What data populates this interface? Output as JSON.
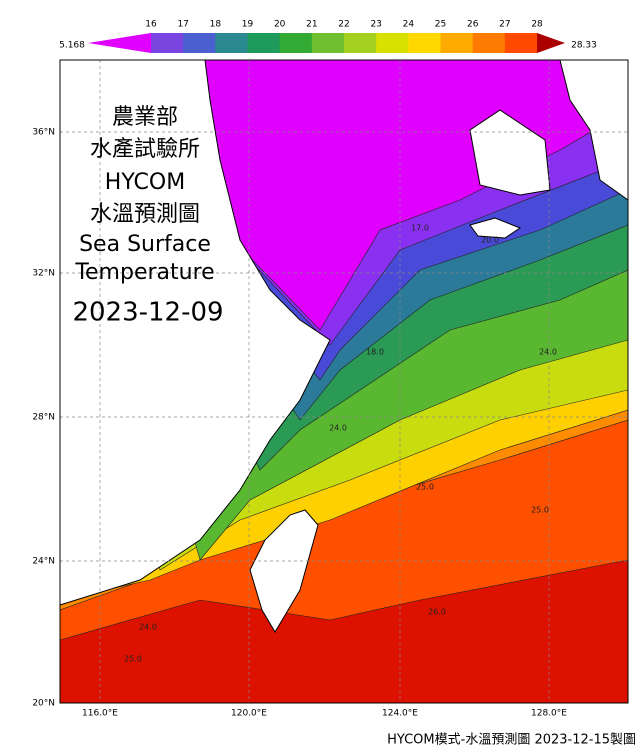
{
  "colorbar": {
    "min_label": "5.168",
    "max_label": "28.33",
    "labels": [
      "16",
      "17",
      "18",
      "19",
      "20",
      "21",
      "22",
      "23",
      "24",
      "25",
      "26",
      "27",
      "28"
    ]
  },
  "map": {
    "title_lines": [
      "農業部",
      "水產試驗所",
      "HYCOM",
      "水溫預測圖",
      "Sea Surface",
      "Temperature"
    ],
    "date": "2023-12-09",
    "lat_ticks": [
      "36°N",
      "32°N",
      "28°N",
      "24°N",
      "20°N"
    ],
    "lon_ticks": [
      "116.0°E",
      "120.0°E",
      "124.0°E",
      "128.0°E"
    ],
    "contour_labels": [
      "17.0",
      "20.0",
      "18.0",
      "24.0",
      "24.0",
      "25.0",
      "25.0",
      "26.0",
      "24.0",
      "25.0"
    ]
  },
  "footer": "HYCOM模式-水溫預測圖 2023-12-15製圖"
}
